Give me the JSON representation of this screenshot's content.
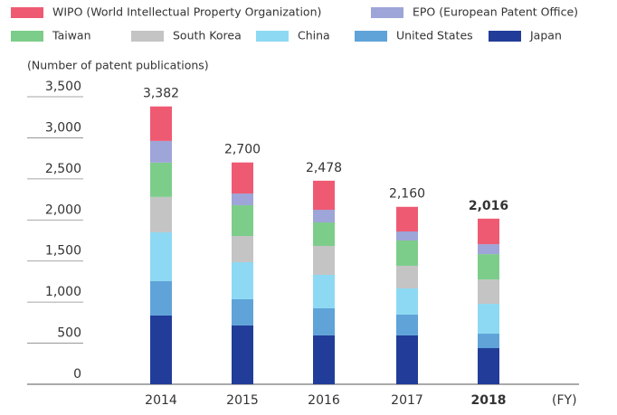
{
  "chart_data": {
    "type": "stacked_bar",
    "y_label": "(Number of patent publications)",
    "x_unit": "(FY)",
    "categories": [
      "2014",
      "2015",
      "2016",
      "2017",
      "2018"
    ],
    "highlight_category": "2018",
    "series": [
      {
        "name": "WIPO (World Intellectual Property Organization)",
        "color": "#ef5a73",
        "values": [
          420,
          378,
          354,
          300,
          311
        ]
      },
      {
        "name": "EPO (European Patent Office)",
        "color": "#9ea5d8",
        "values": [
          264,
          143,
          154,
          110,
          121
        ]
      },
      {
        "name": "Taiwan",
        "color": "#7dcd8a",
        "values": [
          418,
          374,
          286,
          308,
          308
        ]
      },
      {
        "name": "South Korea",
        "color": "#c4c4c4",
        "values": [
          430,
          319,
          352,
          275,
          297
        ]
      },
      {
        "name": "China",
        "color": "#8dd9f3",
        "values": [
          595,
          451,
          407,
          319,
          363
        ]
      },
      {
        "name": "United States",
        "color": "#5fa3d8",
        "values": [
          418,
          319,
          330,
          253,
          176
        ]
      },
      {
        "name": "Japan",
        "color": "#213d99",
        "values": [
          837,
          716,
          595,
          595,
          440
        ]
      }
    ],
    "totals": [
      3382,
      2700,
      2478,
      2160,
      2016
    ],
    "total_labels": [
      "3,382",
      "2,700",
      "2,478",
      "2,160",
      "2,016"
    ],
    "ylim": [
      0,
      3500
    ],
    "yticks": [
      0,
      500,
      {
        "value": 1000,
        "label": "1,000"
      },
      {
        "value": 1500,
        "label": "1,500"
      },
      {
        "value": 2000,
        "label": "2,000"
      },
      {
        "value": 2500,
        "label": "2,500"
      },
      {
        "value": 3000,
        "label": "3,000"
      },
      {
        "value": 3500,
        "label": "3,500"
      }
    ]
  }
}
